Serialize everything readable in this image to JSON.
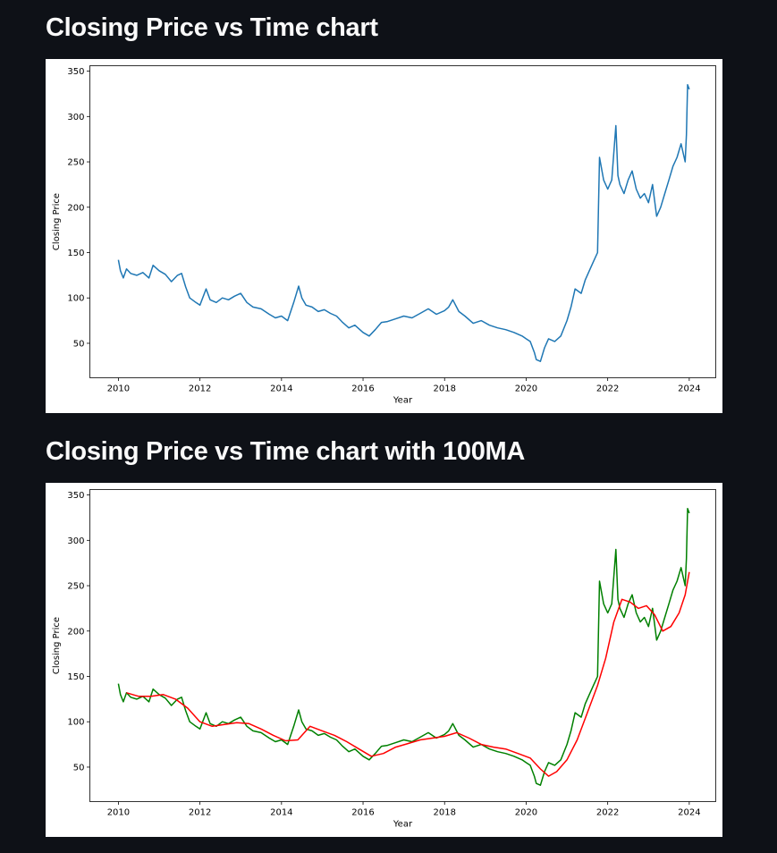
{
  "page": {
    "title_1": "Closing Price vs Time chart",
    "title_2": "Closing Price vs Time chart with 100MA"
  },
  "colors": {
    "background": "#0e1117",
    "title_text": "#fafafa",
    "card": "#ffffff",
    "price_line_chart1": "#1f77b4",
    "price_line_chart2": "#008000",
    "ma100_line": "#ff0000"
  },
  "chart_data": [
    {
      "type": "line",
      "title": "",
      "xlabel": "Year",
      "ylabel": "Closing Price",
      "xlim": [
        2009.3,
        2024.65
      ],
      "ylim": [
        12,
        356
      ],
      "xticks": [
        2010,
        2012,
        2014,
        2016,
        2018,
        2020,
        2022,
        2024
      ],
      "yticks": [
        50,
        100,
        150,
        200,
        250,
        300,
        350
      ],
      "grid": false,
      "series": [
        {
          "color": "#1f77b4",
          "x": [
            2010.0,
            2010.05,
            2010.12,
            2010.2,
            2010.3,
            2010.45,
            2010.6,
            2010.75,
            2010.85,
            2011.0,
            2011.15,
            2011.3,
            2011.45,
            2011.55,
            2011.65,
            2011.75,
            2011.9,
            2012.0,
            2012.15,
            2012.25,
            2012.4,
            2012.55,
            2012.7,
            2012.85,
            2013.0,
            2013.15,
            2013.3,
            2013.5,
            2013.7,
            2013.85,
            2014.0,
            2014.15,
            2014.3,
            2014.42,
            2014.5,
            2014.6,
            2014.75,
            2014.9,
            2015.05,
            2015.2,
            2015.35,
            2015.5,
            2015.65,
            2015.8,
            2016.0,
            2016.15,
            2016.3,
            2016.45,
            2016.6,
            2016.8,
            2017.0,
            2017.2,
            2017.4,
            2017.6,
            2017.8,
            2018.0,
            2018.1,
            2018.2,
            2018.35,
            2018.5,
            2018.7,
            2018.9,
            2019.1,
            2019.3,
            2019.5,
            2019.7,
            2019.9,
            2020.0,
            2020.1,
            2020.2,
            2020.25,
            2020.35,
            2020.45,
            2020.55,
            2020.7,
            2020.85,
            2021.0,
            2021.1,
            2021.2,
            2021.35,
            2021.45,
            2021.55,
            2021.65,
            2021.75,
            2021.8,
            2021.9,
            2022.0,
            2022.1,
            2022.15,
            2022.2,
            2022.25,
            2022.3,
            2022.4,
            2022.5,
            2022.6,
            2022.7,
            2022.8,
            2022.9,
            2023.0,
            2023.1,
            2023.2,
            2023.3,
            2023.4,
            2023.5,
            2023.6,
            2023.7,
            2023.8,
            2023.9,
            2023.93,
            2023.96,
            2024.0
          ],
          "values": [
            142,
            130,
            122,
            132,
            127,
            125,
            128,
            122,
            136,
            130,
            126,
            118,
            125,
            127,
            112,
            100,
            95,
            92,
            110,
            98,
            95,
            100,
            98,
            102,
            105,
            95,
            90,
            88,
            82,
            78,
            80,
            75,
            95,
            113,
            100,
            92,
            90,
            85,
            87,
            83,
            80,
            73,
            67,
            70,
            62,
            58,
            65,
            73,
            74,
            77,
            80,
            78,
            83,
            88,
            82,
            86,
            90,
            98,
            85,
            80,
            72,
            75,
            70,
            67,
            65,
            62,
            58,
            55,
            52,
            40,
            32,
            30,
            45,
            55,
            52,
            58,
            75,
            90,
            110,
            105,
            120,
            130,
            140,
            150,
            255,
            230,
            220,
            230,
            260,
            290,
            235,
            225,
            215,
            230,
            240,
            220,
            210,
            215,
            205,
            225,
            190,
            200,
            215,
            230,
            245,
            255,
            270,
            250,
            280,
            335,
            330
          ]
        }
      ]
    },
    {
      "type": "line",
      "title": "",
      "xlabel": "Year",
      "ylabel": "Closing Price",
      "xlim": [
        2009.3,
        2024.65
      ],
      "ylim": [
        12,
        356
      ],
      "xticks": [
        2010,
        2012,
        2014,
        2016,
        2018,
        2020,
        2022,
        2024
      ],
      "yticks": [
        50,
        100,
        150,
        200,
        250,
        300,
        350
      ],
      "grid": false,
      "series": [
        {
          "color": "#008000",
          "x": [
            2010.0,
            2010.05,
            2010.12,
            2010.2,
            2010.3,
            2010.45,
            2010.6,
            2010.75,
            2010.85,
            2011.0,
            2011.15,
            2011.3,
            2011.45,
            2011.55,
            2011.65,
            2011.75,
            2011.9,
            2012.0,
            2012.15,
            2012.25,
            2012.4,
            2012.55,
            2012.7,
            2012.85,
            2013.0,
            2013.15,
            2013.3,
            2013.5,
            2013.7,
            2013.85,
            2014.0,
            2014.15,
            2014.3,
            2014.42,
            2014.5,
            2014.6,
            2014.75,
            2014.9,
            2015.05,
            2015.2,
            2015.35,
            2015.5,
            2015.65,
            2015.8,
            2016.0,
            2016.15,
            2016.3,
            2016.45,
            2016.6,
            2016.8,
            2017.0,
            2017.2,
            2017.4,
            2017.6,
            2017.8,
            2018.0,
            2018.1,
            2018.2,
            2018.35,
            2018.5,
            2018.7,
            2018.9,
            2019.1,
            2019.3,
            2019.5,
            2019.7,
            2019.9,
            2020.0,
            2020.1,
            2020.2,
            2020.25,
            2020.35,
            2020.45,
            2020.55,
            2020.7,
            2020.85,
            2021.0,
            2021.1,
            2021.2,
            2021.35,
            2021.45,
            2021.55,
            2021.65,
            2021.75,
            2021.8,
            2021.9,
            2022.0,
            2022.1,
            2022.15,
            2022.2,
            2022.25,
            2022.3,
            2022.4,
            2022.5,
            2022.6,
            2022.7,
            2022.8,
            2022.9,
            2023.0,
            2023.1,
            2023.2,
            2023.3,
            2023.4,
            2023.5,
            2023.6,
            2023.7,
            2023.8,
            2023.9,
            2023.93,
            2023.96,
            2024.0
          ],
          "values": [
            142,
            130,
            122,
            132,
            127,
            125,
            128,
            122,
            136,
            130,
            126,
            118,
            125,
            127,
            112,
            100,
            95,
            92,
            110,
            98,
            95,
            100,
            98,
            102,
            105,
            95,
            90,
            88,
            82,
            78,
            80,
            75,
            95,
            113,
            100,
            92,
            90,
            85,
            87,
            83,
            80,
            73,
            67,
            70,
            62,
            58,
            65,
            73,
            74,
            77,
            80,
            78,
            83,
            88,
            82,
            86,
            90,
            98,
            85,
            80,
            72,
            75,
            70,
            67,
            65,
            62,
            58,
            55,
            52,
            40,
            32,
            30,
            45,
            55,
            52,
            58,
            75,
            90,
            110,
            105,
            120,
            130,
            140,
            150,
            255,
            230,
            220,
            230,
            260,
            290,
            235,
            225,
            215,
            230,
            240,
            220,
            210,
            215,
            205,
            225,
            190,
            200,
            215,
            230,
            245,
            255,
            270,
            250,
            280,
            335,
            330
          ]
        },
        {
          "color": "#ff0000",
          "x": [
            2010.2,
            2010.5,
            2010.8,
            2011.1,
            2011.4,
            2011.7,
            2012.0,
            2012.3,
            2012.6,
            2012.9,
            2013.2,
            2013.5,
            2013.8,
            2014.1,
            2014.4,
            2014.7,
            2015.0,
            2015.3,
            2015.6,
            2015.9,
            2016.2,
            2016.5,
            2016.8,
            2017.1,
            2017.4,
            2017.7,
            2018.0,
            2018.3,
            2018.6,
            2018.9,
            2019.2,
            2019.5,
            2019.8,
            2020.1,
            2020.35,
            2020.55,
            2020.75,
            2021.0,
            2021.25,
            2021.5,
            2021.75,
            2021.95,
            2022.15,
            2022.35,
            2022.55,
            2022.75,
            2022.95,
            2023.15,
            2023.35,
            2023.55,
            2023.75,
            2023.9,
            2024.0
          ],
          "values": [
            132,
            128,
            128,
            130,
            125,
            115,
            100,
            95,
            97,
            99,
            98,
            92,
            85,
            79,
            80,
            95,
            90,
            85,
            78,
            70,
            62,
            65,
            72,
            76,
            80,
            82,
            84,
            88,
            82,
            75,
            72,
            70,
            65,
            60,
            48,
            40,
            45,
            58,
            80,
            110,
            140,
            170,
            210,
            235,
            232,
            225,
            228,
            218,
            200,
            205,
            220,
            240,
            265
          ]
        }
      ]
    }
  ]
}
